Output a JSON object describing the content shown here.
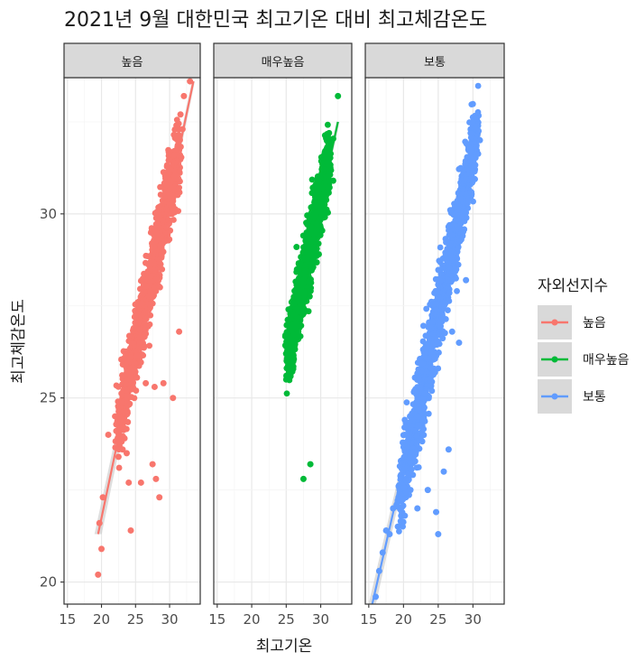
{
  "chart_data": {
    "type": "scatter",
    "title": "2021년 9월 대한민국 최고기온 대비 최고체감온도",
    "xlabel": "최고기온",
    "ylabel": "최고체감온도",
    "xlim": [
      14.5,
      34.5
    ],
    "ylim": [
      19.4,
      33.7
    ],
    "x_ticks": [
      15,
      20,
      25,
      30
    ],
    "y_ticks": [
      20,
      25,
      30
    ],
    "legend": {
      "title": "자외선지수",
      "position": "right",
      "entries": [
        {
          "name": "높음",
          "color": "#F8766D"
        },
        {
          "name": "매우높음",
          "color": "#00BA38"
        },
        {
          "name": "보통",
          "color": "#619CFF"
        }
      ]
    },
    "panel_background": "#ffffff",
    "strip_fill": "#D9D9D9",
    "grid": true,
    "panels": [
      {
        "strip": "높음",
        "color": "#F8766D",
        "trend": {
          "from": [
            19.5,
            21.3
          ],
          "to": [
            33.5,
            33.6
          ]
        },
        "density_band": {
          "x_range": [
            22.5,
            31.5
          ],
          "y_range": [
            24.3,
            31.8
          ],
          "slope": 0.88,
          "spread": 0.9
        },
        "points": [
          [
            19.5,
            20.2
          ],
          [
            20.0,
            20.9
          ],
          [
            19.7,
            21.6
          ],
          [
            20.2,
            22.3
          ],
          [
            21.0,
            24.0
          ],
          [
            22.0,
            24.5
          ],
          [
            22.5,
            23.4
          ],
          [
            23.1,
            23.6
          ],
          [
            23.7,
            23.5
          ],
          [
            24.0,
            22.7
          ],
          [
            24.3,
            21.4
          ],
          [
            25.8,
            22.7
          ],
          [
            27.5,
            23.2
          ],
          [
            28.0,
            22.8
          ],
          [
            28.5,
            22.3
          ],
          [
            26.5,
            25.4
          ],
          [
            27.8,
            25.3
          ],
          [
            29.1,
            25.4
          ],
          [
            30.5,
            25.0
          ],
          [
            31.4,
            26.8
          ],
          [
            31.6,
            32.7
          ],
          [
            31.9,
            32.3
          ],
          [
            32.1,
            33.2
          ],
          [
            33.0,
            33.6
          ]
        ]
      },
      {
        "strip": "매우높음",
        "color": "#00BA38",
        "trend": {
          "from": [
            25.0,
            26.0
          ],
          "to": [
            32.5,
            32.5
          ]
        },
        "density_band": {
          "x_range": [
            25.3,
            31.2
          ],
          "y_range": [
            26.2,
            31.5
          ],
          "slope": 0.9,
          "spread": 0.8
        },
        "points": [
          [
            25.0,
            25.5
          ],
          [
            27.5,
            22.8
          ],
          [
            28.5,
            23.2
          ],
          [
            25.3,
            26.2
          ],
          [
            26.5,
            29.1
          ],
          [
            31.5,
            32.0
          ],
          [
            32.5,
            33.2
          ],
          [
            31.8,
            30.9
          ]
        ]
      },
      {
        "strip": "보통",
        "color": "#619CFF",
        "trend": {
          "from": [
            15.5,
            19.4
          ],
          "to": [
            31.0,
            32.2
          ]
        },
        "density_band": {
          "x_range": [
            19.5,
            30.5
          ],
          "y_range": [
            22.3,
            32.2
          ],
          "slope": 0.87,
          "spread": 1.0
        },
        "points": [
          [
            16.0,
            19.6
          ],
          [
            16.5,
            20.3
          ],
          [
            17.0,
            20.8
          ],
          [
            17.5,
            21.4
          ],
          [
            18.0,
            21.3
          ],
          [
            18.5,
            22.0
          ],
          [
            19.0,
            22.1
          ],
          [
            19.3,
            22.6
          ],
          [
            21.0,
            22.5
          ],
          [
            22.0,
            22.0
          ],
          [
            23.5,
            22.5
          ],
          [
            24.7,
            21.9
          ],
          [
            25.0,
            21.3
          ],
          [
            25.8,
            23.0
          ],
          [
            26.5,
            23.6
          ],
          [
            27.0,
            26.8
          ],
          [
            28.0,
            26.5
          ],
          [
            29.0,
            28.2
          ],
          [
            29.5,
            31.1
          ],
          [
            30.0,
            32.5
          ],
          [
            31.0,
            32.0
          ],
          [
            30.5,
            32.6
          ]
        ]
      }
    ]
  }
}
